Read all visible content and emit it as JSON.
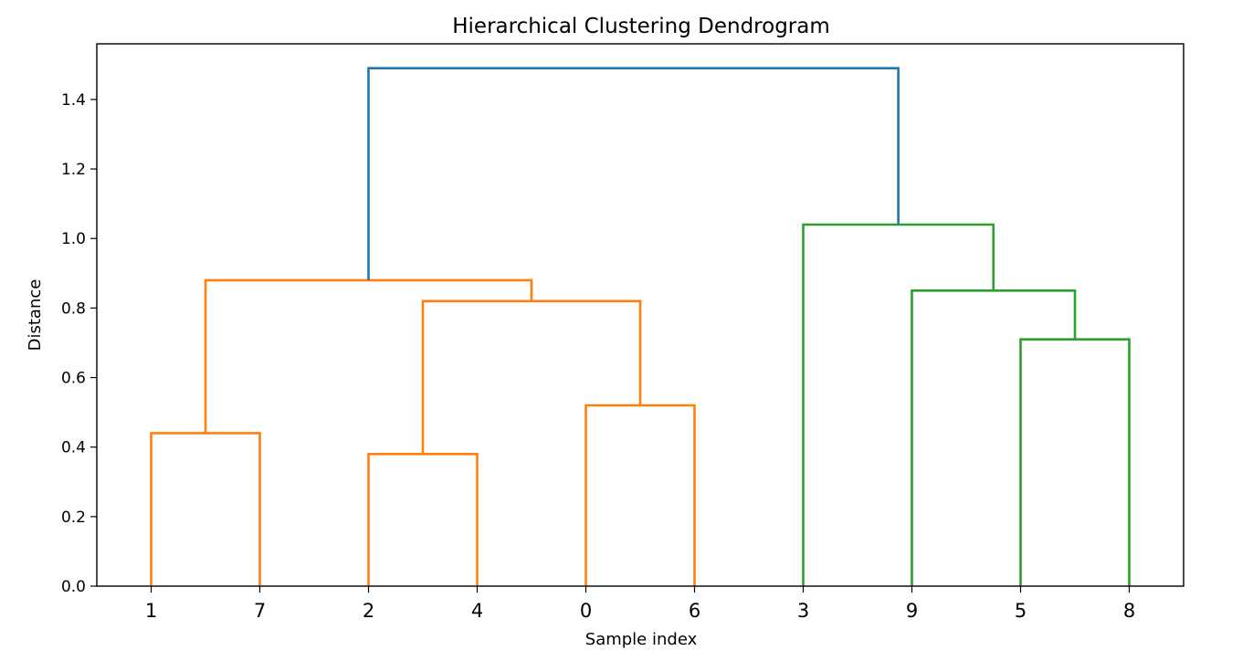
{
  "chart_data": {
    "type": "dendrogram",
    "title": "Hierarchical Clustering Dendrogram",
    "xlabel": "Sample index",
    "ylabel": "Distance",
    "ylim": [
      0,
      1.56
    ],
    "yticks": [
      "0.0",
      "0.2",
      "0.4",
      "0.6",
      "0.8",
      "1.0",
      "1.2",
      "1.4"
    ],
    "leaf_order": [
      "1",
      "7",
      "2",
      "4",
      "0",
      "6",
      "3",
      "9",
      "5",
      "8"
    ],
    "grid": false,
    "colors": {
      "orange": "#ff7f0e",
      "green": "#2ca02c",
      "blue": "#1f77b4"
    },
    "links": [
      {
        "left": "1",
        "right": "7",
        "height": 0.44,
        "color": "#ff7f0e"
      },
      {
        "left": "2",
        "right": "4",
        "height": 0.38,
        "color": "#ff7f0e"
      },
      {
        "left": "0",
        "right": "6",
        "height": 0.52,
        "color": "#ff7f0e"
      },
      {
        "left": "(2,4)",
        "right": "(0,6)",
        "height": 0.82,
        "color": "#ff7f0e"
      },
      {
        "left": "(1,7)",
        "right": "((2,4),(0,6))",
        "height": 0.88,
        "color": "#ff7f0e"
      },
      {
        "left": "5",
        "right": "8",
        "height": 0.71,
        "color": "#2ca02c"
      },
      {
        "left": "9",
        "right": "(5,8)",
        "height": 0.85,
        "color": "#2ca02c"
      },
      {
        "left": "3",
        "right": "(9,(5,8))",
        "height": 1.04,
        "color": "#2ca02c"
      },
      {
        "left": "orange-cluster",
        "right": "green-cluster",
        "height": 1.49,
        "color": "#1f77b4"
      }
    ]
  }
}
